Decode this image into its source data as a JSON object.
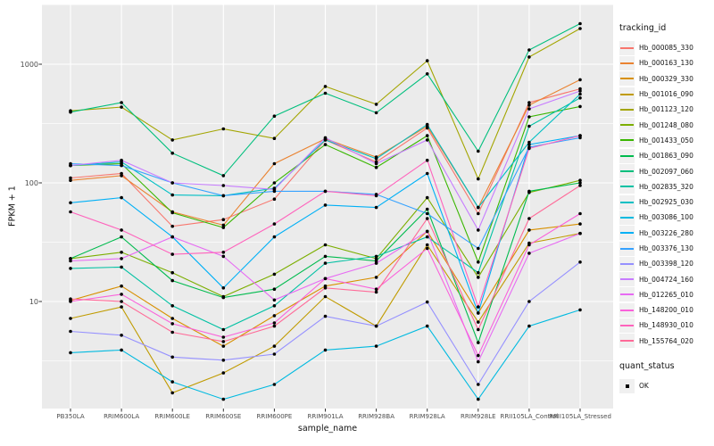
{
  "chart_data": {
    "type": "line",
    "xlabel": "sample_name",
    "ylabel": "FPKM + 1",
    "categories": [
      "PB350LA",
      "RRIM600LA",
      "RRIM600LE",
      "RRIM600SE",
      "RRIM600PE",
      "RRIM901LA",
      "RRIM928BA",
      "RRIM928LA",
      "RRIM928LE",
      "RRII105LA_Control",
      "RRII105LA_Stressed"
    ],
    "y_axis": {
      "scale": "log10",
      "major_breaks": [
        10,
        100,
        1000
      ],
      "major_labels": [
        "10",
        "100",
        "1000"
      ],
      "minor_breaks": [
        3.16,
        31.6,
        316,
        3162
      ],
      "range": [
        1.3,
        3100
      ]
    },
    "series": [
      {
        "name": "Hb_000085_330",
        "color": "#F8766D",
        "values": [
          110,
          120,
          43,
          49,
          73,
          230,
          150,
          290,
          55,
          475,
          620
        ]
      },
      {
        "name": "Hb_000163_130",
        "color": "#EA8331",
        "values": [
          105,
          115,
          57,
          44,
          145,
          235,
          165,
          300,
          62,
          452,
          740
        ]
      },
      {
        "name": "Hb_000329_330",
        "color": "#D89000",
        "values": [
          10.2,
          13.5,
          7.2,
          4.2,
          7.6,
          13.5,
          16,
          39,
          8,
          40,
          45
        ]
      },
      {
        "name": "Hb_001016_090",
        "color": "#C09B00",
        "values": [
          7.2,
          9,
          1.7,
          2.5,
          4.2,
          11,
          6.2,
          30,
          6.7,
          31,
          37.5
        ]
      },
      {
        "name": "Hb_001123_120",
        "color": "#A3A500",
        "values": [
          405,
          435,
          230,
          285,
          237,
          650,
          460,
          1070,
          108,
          1150,
          2000
        ]
      },
      {
        "name": "Hb_001248_080",
        "color": "#7CAE00",
        "values": [
          23,
          26,
          17.5,
          11,
          17,
          30,
          23,
          75,
          16,
          83,
          105
        ]
      },
      {
        "name": "Hb_001433_050",
        "color": "#39B600",
        "values": [
          140,
          145,
          56,
          42,
          100,
          210,
          135,
          250,
          21.5,
          360,
          440
        ]
      },
      {
        "name": "Hb_001863_090",
        "color": "#00BB4E",
        "values": [
          23,
          35,
          15,
          10.8,
          12.7,
          24,
          22,
          60,
          4.5,
          85,
          100
        ]
      },
      {
        "name": "Hb_002097_060",
        "color": "#00BF7D",
        "values": [
          395,
          475,
          178,
          115,
          365,
          570,
          390,
          830,
          185,
          1320,
          2200
        ]
      },
      {
        "name": "Hb_002835_320",
        "color": "#00C1A3",
        "values": [
          19,
          19.5,
          9.2,
          5.8,
          9.2,
          21,
          24,
          35,
          17.5,
          300,
          520
        ]
      },
      {
        "name": "Hb_002925_030",
        "color": "#00BFC4",
        "values": [
          140,
          150,
          79,
          78,
          90,
          230,
          160,
          310,
          62,
          220,
          560
        ]
      },
      {
        "name": "Hb_003086_100",
        "color": "#00BAE0",
        "values": [
          3.7,
          3.9,
          2.1,
          1.5,
          2.0,
          3.9,
          4.2,
          6.2,
          1.5,
          6.2,
          8.5
        ]
      },
      {
        "name": "Hb_003226_280",
        "color": "#00B0F6",
        "values": [
          68,
          75,
          35,
          13,
          35,
          65,
          62,
          120,
          8,
          210,
          250
        ]
      },
      {
        "name": "Hb_003376_130",
        "color": "#35A2FF",
        "values": [
          145,
          140,
          100,
          78,
          85,
          85,
          80,
          55,
          28,
          200,
          240
        ]
      },
      {
        "name": "Hb_003398_120",
        "color": "#9590FF",
        "values": [
          5.6,
          5.2,
          3.4,
          3.2,
          3.6,
          7.5,
          6.2,
          9.9,
          2.0,
          10,
          21.5
        ]
      },
      {
        "name": "Hb_004724_160",
        "color": "#C77CFF",
        "values": [
          140,
          155,
          100,
          95,
          88,
          240,
          145,
          230,
          40,
          420,
          595
        ]
      },
      {
        "name": "Hb_012265_010",
        "color": "#E76BF3",
        "values": [
          22,
          23,
          35,
          24,
          10.3,
          15.6,
          21,
          39,
          3.1,
          25.5,
          37.5
        ]
      },
      {
        "name": "Hb_148200_010",
        "color": "#FA62DB",
        "values": [
          10,
          11.5,
          6.5,
          5.0,
          6.6,
          15.6,
          12.7,
          28,
          3.5,
          30,
          55
        ]
      },
      {
        "name": "Hb_148930_010",
        "color": "#FF62BC",
        "values": [
          57,
          40,
          25,
          26,
          45,
          85,
          78,
          155,
          9,
          195,
          250
        ]
      },
      {
        "name": "Hb_155764_020",
        "color": "#FF6A98",
        "values": [
          10.5,
          10,
          5.5,
          4.6,
          6.2,
          13,
          12,
          50,
          5.8,
          50,
          95
        ]
      }
    ],
    "legend": {
      "tracking_title": "tracking_id",
      "quant_title": "quant_status",
      "quant_items": [
        {
          "label": "OK",
          "marker": "black-square"
        }
      ]
    },
    "style": {
      "panel_bg": "#EBEBEB",
      "grid_color": "#FFFFFF",
      "point_color": "#000000",
      "tick_color": "#333333",
      "axis_text_color": "#4D4D4D"
    },
    "grid": "on",
    "legend_position": "right"
  }
}
